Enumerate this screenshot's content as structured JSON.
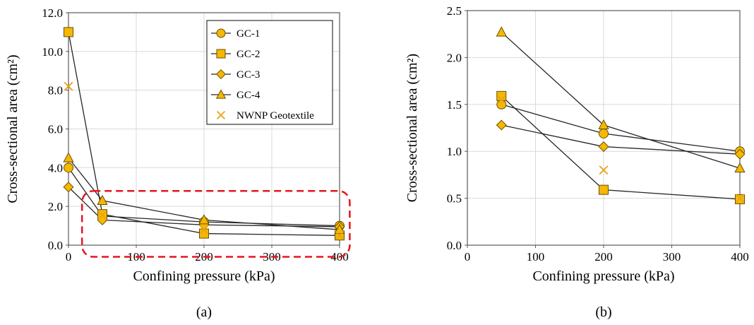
{
  "colors": {
    "marker_fill": "#F5B800",
    "marker_stroke": "#6B4E00",
    "line": "#262626",
    "highlight_box": "#E8141E",
    "cross": "#E8A317"
  },
  "chart_data": [
    {
      "type": "line",
      "caption": "(a)",
      "xlabel": "Confining pressure (kPa)",
      "ylabel": "Cross-sectional area (cm²)",
      "xlim": [
        0,
        400
      ],
      "ylim": [
        0,
        12
      ],
      "xticks": [
        0,
        100,
        200,
        300,
        400
      ],
      "yticks": [
        "0.0",
        "2.0",
        "4.0",
        "6.0",
        "8.0",
        "10.0",
        "12.0"
      ],
      "ytick_values": [
        0,
        2,
        4,
        6,
        8,
        10,
        12
      ],
      "legend_position": "top-right",
      "highlight_region": {
        "x": [
          20,
          415
        ],
        "y": [
          -0.6,
          2.8
        ]
      },
      "series": [
        {
          "name": "GC-1",
          "marker": "circle",
          "x": [
            0,
            50,
            200,
            400
          ],
          "y": [
            4.0,
            1.5,
            1.2,
            1.0
          ]
        },
        {
          "name": "GC-2",
          "marker": "square",
          "x": [
            0,
            50,
            200,
            400
          ],
          "y": [
            11.0,
            1.6,
            0.6,
            0.5
          ]
        },
        {
          "name": "GC-3",
          "marker": "diamond",
          "x": [
            0,
            50,
            200,
            400
          ],
          "y": [
            3.0,
            1.3,
            1.05,
            0.95
          ]
        },
        {
          "name": "GC-4",
          "marker": "triangle",
          "x": [
            0,
            50,
            200,
            400
          ],
          "y": [
            4.5,
            2.3,
            1.3,
            0.8
          ]
        },
        {
          "name": "NWNP Geotextile",
          "marker": "cross",
          "x": [
            0,
            50,
            200,
            400
          ],
          "y": [
            8.2,
            1.55,
            0.8,
            0.5
          ]
        }
      ]
    },
    {
      "type": "line",
      "caption": "(b)",
      "xlabel": "Confining pressure (kPa)",
      "ylabel": "Cross-sectional area (cm²)",
      "xlim": [
        0,
        400
      ],
      "ylim": [
        0,
        2.5
      ],
      "xticks": [
        0,
        100,
        200,
        300,
        400
      ],
      "yticks": [
        "0.0",
        "0.5",
        "1.0",
        "1.5",
        "2.0",
        "2.5"
      ],
      "ytick_values": [
        0,
        0.5,
        1.0,
        1.5,
        2.0,
        2.5
      ],
      "series": [
        {
          "name": "GC-1",
          "marker": "circle",
          "x": [
            50,
            200,
            400
          ],
          "y": [
            1.5,
            1.19,
            1.0
          ]
        },
        {
          "name": "GC-2",
          "marker": "square",
          "x": [
            50,
            200,
            400
          ],
          "y": [
            1.59,
            0.59,
            0.49
          ]
        },
        {
          "name": "GC-3",
          "marker": "diamond",
          "x": [
            50,
            200,
            400
          ],
          "y": [
            1.28,
            1.05,
            0.97
          ]
        },
        {
          "name": "GC-4",
          "marker": "triangle",
          "x": [
            50,
            200,
            400
          ],
          "y": [
            2.27,
            1.28,
            0.82
          ]
        },
        {
          "name": "NWNP Geotextile",
          "marker": "cross",
          "x": [
            50,
            200,
            400
          ],
          "y": [
            1.55,
            0.8,
            0.5
          ]
        }
      ]
    }
  ]
}
